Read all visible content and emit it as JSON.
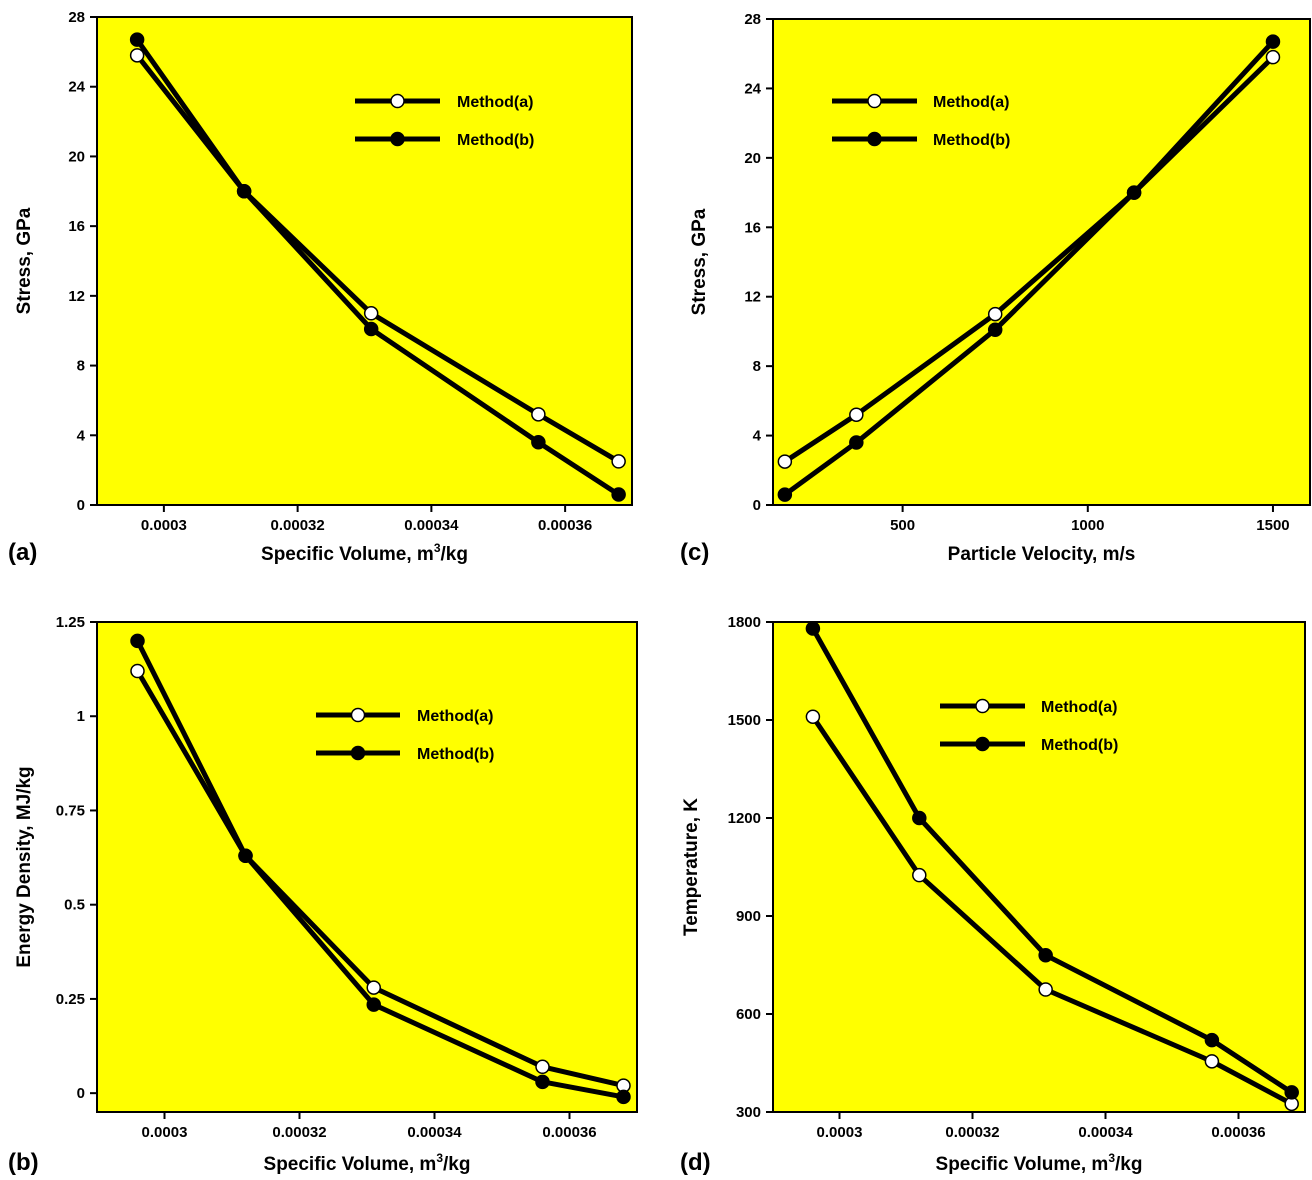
{
  "chart_data": [
    {
      "panel": "(a)",
      "type": "line",
      "xlabel_main": "Specific Volume, m",
      "xlabel_sup": "3",
      "xlabel_tail": "/kg",
      "ylabel": "Stress, GPa",
      "xlim": [
        0.00029,
        0.00037
      ],
      "ylim": [
        0,
        28
      ],
      "xticks": [
        0.0003,
        0.00032,
        0.00034,
        0.00036
      ],
      "xtick_labels": [
        "0.0003",
        "0.00032",
        "0.00034",
        "0.00036"
      ],
      "yticks": [
        0,
        4,
        8,
        12,
        16,
        20,
        24,
        28
      ],
      "ytick_labels": [
        "0",
        "4",
        "8",
        "12",
        "16",
        "20",
        "24",
        "28"
      ],
      "series": [
        {
          "name": "Method(a)",
          "marker": "open",
          "x": [
            0.000296,
            0.000312,
            0.000331,
            0.000356,
            0.000368
          ],
          "y": [
            25.8,
            18.0,
            11.0,
            5.2,
            2.5
          ]
        },
        {
          "name": "Method(b)",
          "marker": "filled",
          "x": [
            0.000296,
            0.000312,
            0.000331,
            0.000356,
            0.000368
          ],
          "y": [
            26.7,
            18.0,
            10.1,
            3.6,
            0.6
          ]
        }
      ],
      "legend": "top-right"
    },
    {
      "panel": "(c)",
      "type": "line",
      "xlabel_main": "Particle Velocity, m/s",
      "xlabel_sup": "",
      "xlabel_tail": "",
      "ylabel": "Stress, GPa",
      "xlim": [
        150,
        1600
      ],
      "ylim": [
        0,
        28
      ],
      "xticks": [
        500,
        1000,
        1500
      ],
      "xtick_labels": [
        "500",
        "1000",
        "1500"
      ],
      "yticks": [
        0,
        4,
        8,
        12,
        16,
        20,
        24,
        28
      ],
      "ytick_labels": [
        "0",
        "4",
        "8",
        "12",
        "16",
        "20",
        "24",
        "28"
      ],
      "series": [
        {
          "name": "Method(a)",
          "marker": "open",
          "x": [
            182,
            375,
            750,
            1125,
            1500
          ],
          "y": [
            2.5,
            5.2,
            11.0,
            18.0,
            25.8
          ]
        },
        {
          "name": "Method(b)",
          "marker": "filled",
          "x": [
            182,
            375,
            750,
            1125,
            1500
          ],
          "y": [
            0.6,
            3.6,
            10.1,
            18.0,
            26.7
          ]
        }
      ],
      "legend": "top-left"
    },
    {
      "panel": "(b)",
      "type": "line",
      "xlabel_main": "Specific Volume, m",
      "xlabel_sup": "3",
      "xlabel_tail": "/kg",
      "ylabel": "Energy Density, MJ/kg",
      "xlim": [
        0.00029,
        0.00037
      ],
      "ylim": [
        -0.05,
        1.25
      ],
      "xticks": [
        0.0003,
        0.00032,
        0.00034,
        0.00036
      ],
      "xtick_labels": [
        "0.0003",
        "0.00032",
        "0.00034",
        "0.00036"
      ],
      "yticks": [
        0,
        0.25,
        0.5,
        0.75,
        1,
        1.25
      ],
      "ytick_labels": [
        "0",
        "0.25",
        "0.5",
        "0.75",
        "1",
        "1.25"
      ],
      "series": [
        {
          "name": "Method(a)",
          "marker": "open",
          "x": [
            0.000296,
            0.000312,
            0.000331,
            0.000356,
            0.000368
          ],
          "y": [
            1.12,
            0.63,
            0.28,
            0.07,
            0.02
          ]
        },
        {
          "name": "Method(b)",
          "marker": "filled",
          "x": [
            0.000296,
            0.000312,
            0.000331,
            0.000356,
            0.000368
          ],
          "y": [
            1.2,
            0.63,
            0.235,
            0.03,
            -0.01
          ]
        }
      ],
      "legend": "top-right"
    },
    {
      "panel": "(d)",
      "type": "line",
      "xlabel_main": "Specific Volume, m",
      "xlabel_sup": "3",
      "xlabel_tail": "/kg",
      "ylabel": "Temperature, K",
      "xlim": [
        0.00029,
        0.00037
      ],
      "ylim": [
        300,
        1800
      ],
      "xticks": [
        0.0003,
        0.00032,
        0.00034,
        0.00036
      ],
      "xtick_labels": [
        "0.0003",
        "0.00032",
        "0.00034",
        "0.00036"
      ],
      "yticks": [
        300,
        600,
        900,
        1200,
        1500,
        1800
      ],
      "ytick_labels": [
        "300",
        "600",
        "900",
        "1200",
        "1500",
        "1800"
      ],
      "series": [
        {
          "name": "Method(a)",
          "marker": "open",
          "x": [
            0.000296,
            0.000312,
            0.000331,
            0.000356,
            0.000368
          ],
          "y": [
            1510,
            1025,
            675,
            455,
            325
          ]
        },
        {
          "name": "Method(b)",
          "marker": "filled",
          "x": [
            0.000296,
            0.000312,
            0.000331,
            0.000356,
            0.000368
          ],
          "y": [
            1780,
            1200,
            780,
            520,
            360
          ]
        }
      ],
      "legend": "top-right"
    }
  ],
  "style": {
    "plot_background": "#ffff00",
    "line_color": "#000000",
    "open_marker_fill": "#ffffff",
    "filled_marker_fill": "#000000"
  }
}
